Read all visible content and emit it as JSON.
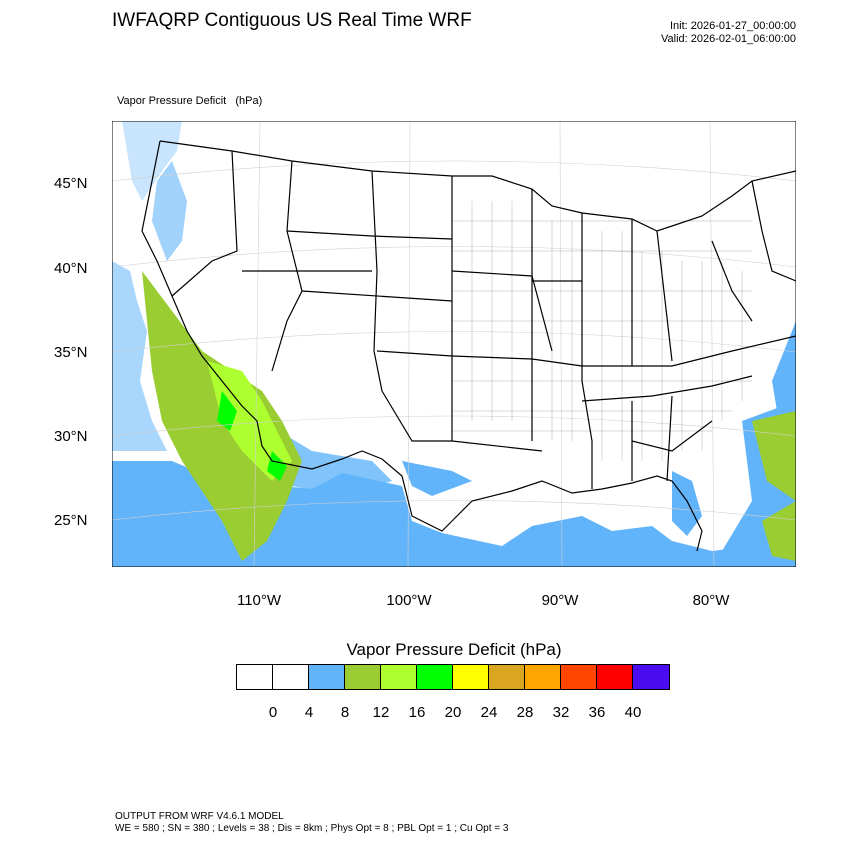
{
  "header": {
    "title": "IWFAQRP Contiguous US Real Time WRF",
    "init": "Init: 2026-01-27_00:00:00",
    "valid": "Valid: 2026-02-01_06:00:00"
  },
  "field_label": "Vapor Pressure Deficit   (hPa)",
  "map": {
    "latitude_labels": [
      "45°N",
      "40°N",
      "35°N",
      "30°N",
      "25°N"
    ],
    "longitude_labels": [
      "110°W",
      "100°W",
      "90°W",
      "80°W"
    ]
  },
  "legend": {
    "title": "Vapor Pressure Deficit  (hPa)",
    "colors": [
      "#ffffff",
      "#ffffff",
      "#62b4fa",
      "#9acd32",
      "#adff2f",
      "#00ff00",
      "#ffff00",
      "#daa520",
      "#ffa500",
      "#ff4500",
      "#ff0000",
      "#4b0cf0"
    ],
    "tick_labels": [
      "0",
      "4",
      "8",
      "12",
      "16",
      "20",
      "24",
      "28",
      "32",
      "36",
      "40"
    ]
  },
  "footer": {
    "line1": "OUTPUT FROM WRF V4.6.1 MODEL",
    "line2": "WE = 580 ; SN = 380 ; Levels = 38 ; Dis = 8km ; Phys Opt = 8 ; PBL Opt = 1 ; Cu Opt = 3"
  }
}
